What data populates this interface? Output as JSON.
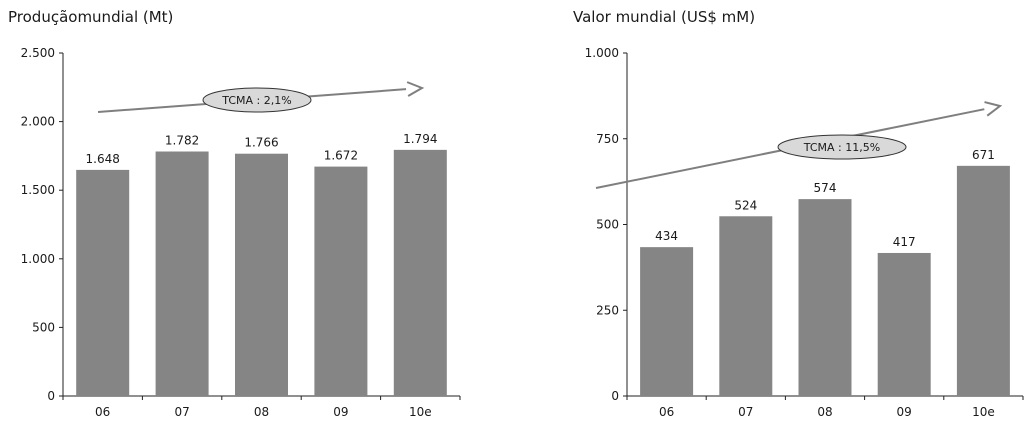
{
  "chart_data": [
    {
      "type": "bar",
      "title": "Produçãomundial (Mt)",
      "categories": [
        "06",
        "07",
        "08",
        "09",
        "10e"
      ],
      "values": [
        1648,
        1782,
        1766,
        1672,
        1794
      ],
      "value_labels": [
        "1.648",
        "1.782",
        "1.766",
        "1.672",
        "1.794"
      ],
      "ylim": [
        0,
        2500
      ],
      "yticks": [
        0,
        500,
        1000,
        1500,
        2000,
        2500
      ],
      "ytick_labels": [
        "0",
        "500",
        "1.000",
        "1.500",
        "2.000",
        "2.500"
      ],
      "annotation": "TCMA : 2,1%",
      "bar_color": "#858585",
      "grid": false
    },
    {
      "type": "bar",
      "title": "Valor mundial (US$ mM)",
      "categories": [
        "06",
        "07",
        "08",
        "09",
        "10e"
      ],
      "values": [
        434,
        524,
        574,
        417,
        671
      ],
      "value_labels": [
        "434",
        "524",
        "574",
        "417",
        "671"
      ],
      "ylim": [
        0,
        1000
      ],
      "yticks": [
        0,
        250,
        500,
        750,
        1000
      ],
      "ytick_labels": [
        "0",
        "250",
        "500",
        "750",
        "1.000"
      ],
      "annotation": "TCMA : 11,5%",
      "bar_color": "#858585",
      "grid": false
    }
  ]
}
